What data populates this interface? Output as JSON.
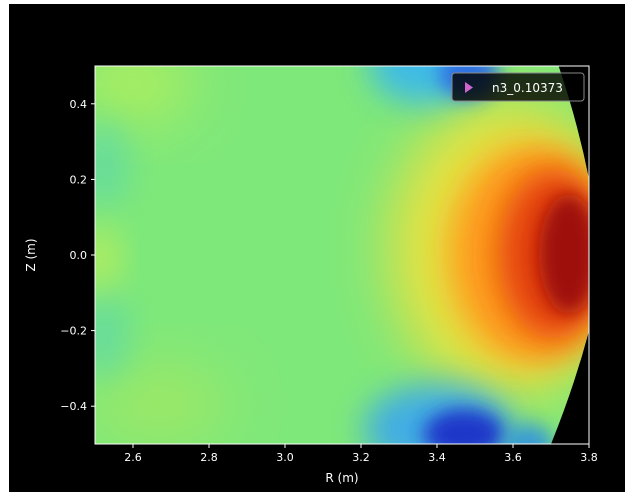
{
  "chart_data": {
    "type": "heatmap",
    "title": "",
    "xlabel": "R (m)",
    "ylabel": "Z (m)",
    "xlim": [
      2.5,
      3.8
    ],
    "ylim": [
      -0.5,
      0.5
    ],
    "xticks": [
      "2.6",
      "2.8",
      "3.0",
      "3.2",
      "3.4",
      "3.6",
      "3.8"
    ],
    "xtick_values": [
      2.6,
      2.8,
      3.0,
      3.2,
      3.4,
      3.6,
      3.8
    ],
    "yticks": [
      "0.4",
      "0.2",
      "0.0",
      "−0.2",
      "−0.4"
    ],
    "ytick_values": [
      0.4,
      0.2,
      0.0,
      -0.2,
      -0.4
    ],
    "colormap": "jet",
    "grid": false,
    "legend": {
      "position": "top-right",
      "entries": [
        {
          "label": "n3_0.10373",
          "marker": "triangle-right",
          "color": "#cc66cc"
        }
      ]
    },
    "field_features": [
      {
        "description": "background",
        "value": 0.45
      },
      {
        "description": "hot core",
        "r": 3.74,
        "z": -0.02,
        "value": 1.0
      },
      {
        "description": "cold bottom lobe",
        "r": 3.45,
        "z": -0.45,
        "value": 0.1
      },
      {
        "description": "cold top lobe",
        "r": 3.45,
        "z": 0.47,
        "value": 0.25
      }
    ],
    "boundary": {
      "description": "outer plasma edge",
      "points": [
        [
          3.72,
          0.5
        ],
        [
          3.8,
          0.2
        ],
        [
          3.82,
          0.0
        ],
        [
          3.8,
          -0.2
        ],
        [
          3.7,
          -0.5
        ]
      ]
    }
  }
}
